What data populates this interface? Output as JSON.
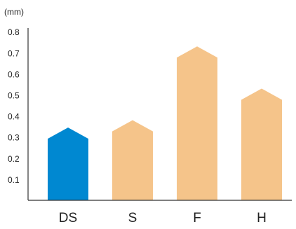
{
  "chart_data": {
    "type": "bar",
    "unit_label": "(mm)",
    "categories": [
      "DS",
      "S",
      "F",
      "H"
    ],
    "values": [
      0.345,
      0.38,
      0.73,
      0.53
    ],
    "yticks": [
      "0.1",
      "0.2",
      "0.3",
      "0.4",
      "0.5",
      "0.6",
      "0.7",
      "0.8"
    ],
    "ylim": [
      0,
      0.8
    ],
    "grid": false,
    "colors": {
      "highlight": "#0088d1",
      "default": "#f5c48a",
      "axis": "#333333",
      "highlight_label": "#0088d1",
      "label": "#222222"
    },
    "highlight_index": 0
  }
}
